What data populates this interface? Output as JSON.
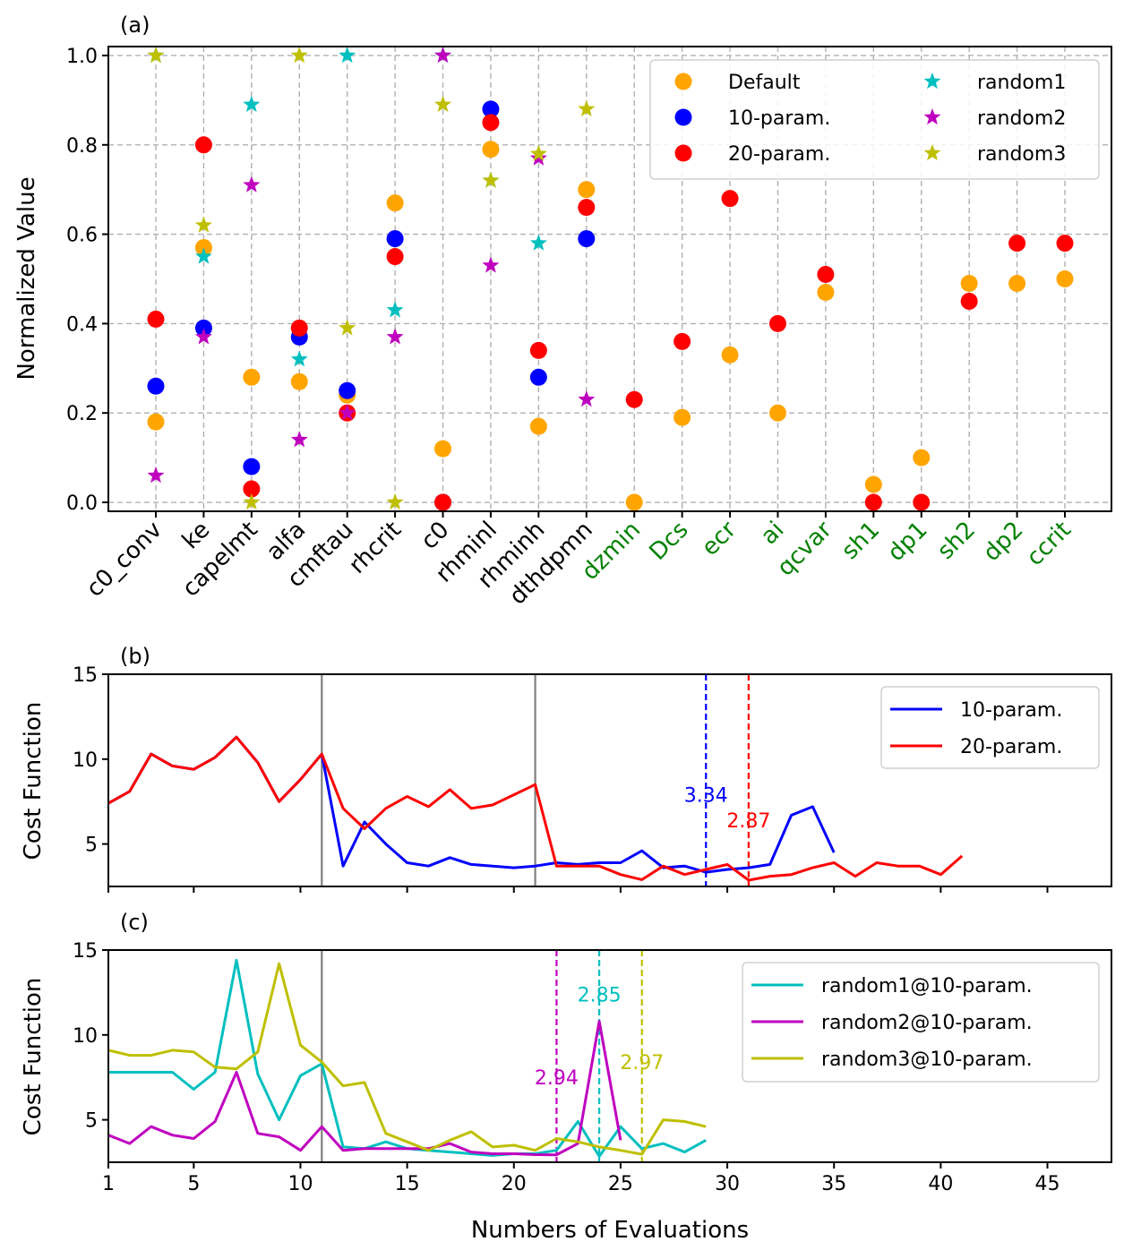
{
  "chart_data": [
    {
      "panel": "(a)",
      "type": "scatter",
      "title": "(a)",
      "xlabel": "",
      "ylabel": "Normalized Value",
      "ylim": [
        -0.02,
        1.02
      ],
      "yticks": [
        "0.0",
        "0.2",
        "0.4",
        "0.6",
        "0.8",
        "1.0"
      ],
      "grid": true,
      "legend_position": "top-right",
      "categories": [
        "c0_conv",
        "ke",
        "capelmt",
        "alfa",
        "cmftau",
        "rhcrit",
        "c0",
        "rhminl",
        "rhminh",
        "dthdpmn",
        "dzmin",
        "Dcs",
        "ecr",
        "ai",
        "qcvar",
        "sh1",
        "dp1",
        "sh2",
        "dp2",
        "ccrit"
      ],
      "category_colors": [
        "#000000",
        "#000000",
        "#000000",
        "#000000",
        "#000000",
        "#000000",
        "#000000",
        "#000000",
        "#000000",
        "#000000",
        "#008000",
        "#008000",
        "#008000",
        "#008000",
        "#008000",
        "#008000",
        "#008000",
        "#008000",
        "#008000",
        "#008000"
      ],
      "series": [
        {
          "name": "Default",
          "marker": "circle",
          "color": "#FFA500",
          "values": [
            0.18,
            0.57,
            0.28,
            0.27,
            0.24,
            0.67,
            0.12,
            0.79,
            0.17,
            0.7,
            0.0,
            0.19,
            0.33,
            0.2,
            0.47,
            0.04,
            0.1,
            0.49,
            0.49,
            0.5
          ]
        },
        {
          "name": "10-param.",
          "marker": "circle",
          "color": "#0000FF",
          "values": [
            0.26,
            0.39,
            0.08,
            0.37,
            0.25,
            0.59,
            0.0,
            0.88,
            0.28,
            0.59,
            null,
            null,
            null,
            null,
            null,
            null,
            null,
            null,
            null,
            null
          ]
        },
        {
          "name": "20-param.",
          "marker": "circle",
          "color": "#FF0000",
          "values": [
            0.41,
            0.8,
            0.03,
            0.39,
            0.2,
            0.55,
            0.0,
            0.85,
            0.34,
            0.66,
            0.23,
            0.36,
            0.68,
            0.4,
            0.51,
            0.0,
            0.0,
            0.45,
            0.58,
            0.58
          ]
        },
        {
          "name": "random1",
          "marker": "star",
          "color": "#00BFBF",
          "values": [
            1.0,
            0.55,
            0.89,
            0.32,
            1.0,
            0.43,
            1.0,
            0.72,
            0.58,
            null,
            null,
            null,
            null,
            null,
            null,
            null,
            null,
            null,
            null,
            null
          ]
        },
        {
          "name": "random2",
          "marker": "star",
          "color": "#BF00BF",
          "values": [
            0.06,
            0.37,
            0.71,
            0.14,
            0.2,
            0.37,
            1.0,
            0.53,
            0.77,
            0.23,
            null,
            null,
            null,
            null,
            null,
            null,
            null,
            null,
            null,
            null
          ]
        },
        {
          "name": "random3",
          "marker": "star",
          "color": "#BFBF00",
          "values": [
            1.0,
            0.62,
            0.0,
            1.0,
            0.39,
            0.0,
            0.89,
            0.72,
            0.78,
            0.88,
            null,
            null,
            null,
            null,
            null,
            null,
            null,
            null,
            null,
            null
          ]
        }
      ]
    },
    {
      "panel": "(b)",
      "type": "line",
      "title": "(b)",
      "xlabel": "",
      "ylabel": "Cost Function",
      "xlim": [
        1,
        48
      ],
      "ylim": [
        2.5,
        15
      ],
      "yticks": [
        "5",
        "10",
        "15"
      ],
      "grid": false,
      "legend_position": "top-right",
      "vertical_lines": [
        {
          "x": 11,
          "color": "#808080",
          "style": "solid"
        },
        {
          "x": 21,
          "color": "#808080",
          "style": "solid"
        },
        {
          "x": 29,
          "color": "#0000FF",
          "style": "dashed"
        },
        {
          "x": 31,
          "color": "#FF0000",
          "style": "dashed"
        }
      ],
      "annotations": [
        {
          "text": "3.34",
          "x": 29,
          "y": 7.9,
          "color": "#0000FF"
        },
        {
          "text": "2.87",
          "x": 31,
          "y": 6.4,
          "color": "#FF0000"
        }
      ],
      "series": [
        {
          "name": "10-param.",
          "color": "#0000FF",
          "x": [
            1,
            2,
            3,
            4,
            5,
            6,
            7,
            8,
            9,
            10,
            11,
            12,
            13,
            14,
            15,
            16,
            17,
            18,
            19,
            20,
            21,
            22,
            23,
            24,
            25,
            26,
            27,
            28,
            29,
            30,
            31,
            32,
            33,
            34,
            35
          ],
          "values": [
            7.4,
            8.1,
            10.3,
            9.6,
            9.4,
            10.1,
            11.3,
            9.8,
            7.5,
            8.8,
            10.3,
            3.7,
            6.3,
            5.0,
            3.9,
            3.7,
            4.2,
            3.8,
            3.7,
            3.6,
            3.7,
            3.9,
            3.8,
            3.9,
            3.9,
            4.6,
            3.6,
            3.7,
            3.34,
            3.5,
            3.6,
            3.8,
            6.7,
            7.2,
            4.5
          ]
        },
        {
          "name": "20-param.",
          "color": "#FF0000",
          "x": [
            1,
            2,
            3,
            4,
            5,
            6,
            7,
            8,
            9,
            10,
            11,
            12,
            13,
            14,
            15,
            16,
            17,
            18,
            19,
            20,
            21,
            22,
            23,
            24,
            25,
            26,
            27,
            28,
            29,
            30,
            31,
            32,
            33,
            34,
            35,
            36,
            37,
            38,
            39,
            40,
            41
          ],
          "values": [
            7.4,
            8.1,
            10.3,
            9.6,
            9.4,
            10.1,
            11.3,
            9.8,
            7.5,
            8.8,
            10.3,
            7.1,
            5.9,
            7.1,
            7.8,
            7.2,
            8.2,
            7.1,
            7.3,
            7.9,
            8.5,
            3.7,
            3.7,
            3.7,
            3.2,
            2.9,
            3.7,
            3.2,
            3.5,
            3.8,
            2.87,
            3.1,
            3.2,
            3.6,
            3.9,
            3.1,
            3.9,
            3.7,
            3.7,
            3.2,
            4.3
          ]
        }
      ]
    },
    {
      "panel": "(c)",
      "type": "line",
      "title": "(c)",
      "xlabel": "Numbers of Evaluations",
      "ylabel": "Cost Function",
      "xlim": [
        1,
        48
      ],
      "ylim": [
        2.5,
        15
      ],
      "xticks": [
        "1",
        "5",
        "10",
        "15",
        "20",
        "25",
        "30",
        "35",
        "40",
        "45"
      ],
      "xtick_values": [
        1,
        5,
        10,
        15,
        20,
        25,
        30,
        35,
        40,
        45
      ],
      "yticks": [
        "5",
        "10",
        "15"
      ],
      "grid": false,
      "legend_position": "top-right",
      "vertical_lines": [
        {
          "x": 11,
          "color": "#808080",
          "style": "solid"
        },
        {
          "x": 22,
          "color": "#BF00BF",
          "style": "dashed"
        },
        {
          "x": 24,
          "color": "#00BFBF",
          "style": "dashed"
        },
        {
          "x": 26,
          "color": "#BFBF00",
          "style": "dashed"
        }
      ],
      "annotations": [
        {
          "text": "2.85",
          "x": 24,
          "y": 12.4,
          "color": "#00BFBF"
        },
        {
          "text": "2.94",
          "x": 22,
          "y": 7.5,
          "color": "#BF00BF"
        },
        {
          "text": "2.97",
          "x": 26,
          "y": 8.4,
          "color": "#BFBF00"
        }
      ],
      "series": [
        {
          "name": "random1@10-param.",
          "color": "#00BFBF",
          "x": [
            1,
            2,
            3,
            4,
            5,
            6,
            7,
            8,
            9,
            10,
            11,
            12,
            13,
            14,
            15,
            16,
            17,
            18,
            19,
            20,
            21,
            22,
            23,
            24,
            25,
            26,
            27,
            28,
            29
          ],
          "values": [
            7.8,
            7.8,
            7.8,
            7.8,
            6.8,
            7.8,
            14.4,
            7.7,
            5.0,
            7.6,
            8.3,
            3.4,
            3.3,
            3.7,
            3.3,
            3.2,
            3.1,
            3.0,
            2.9,
            3.0,
            3.0,
            3.2,
            4.9,
            2.85,
            4.6,
            3.3,
            3.6,
            3.1,
            3.8
          ]
        },
        {
          "name": "random2@10-param.",
          "color": "#BF00BF",
          "x": [
            1,
            2,
            3,
            4,
            5,
            6,
            7,
            8,
            9,
            10,
            11,
            12,
            13,
            14,
            15,
            16,
            17,
            18,
            19,
            20,
            21,
            22,
            23,
            24,
            25
          ],
          "values": [
            4.1,
            3.6,
            4.6,
            4.1,
            3.9,
            4.9,
            7.8,
            4.2,
            4.0,
            3.2,
            4.6,
            3.2,
            3.3,
            3.3,
            3.3,
            3.3,
            3.6,
            3.1,
            3.0,
            3.0,
            2.95,
            2.94,
            3.6,
            10.8,
            3.8
          ]
        },
        {
          "name": "random3@10-param.",
          "color": "#BFBF00",
          "x": [
            1,
            2,
            3,
            4,
            5,
            6,
            7,
            8,
            9,
            10,
            11,
            12,
            13,
            14,
            15,
            16,
            17,
            18,
            19,
            20,
            21,
            22,
            23,
            24,
            25,
            26,
            27,
            28,
            29
          ],
          "values": [
            9.1,
            8.8,
            8.8,
            9.1,
            9.0,
            8.1,
            8.0,
            9.0,
            14.2,
            9.4,
            8.4,
            7.0,
            7.2,
            4.2,
            3.7,
            3.2,
            3.8,
            4.3,
            3.4,
            3.5,
            3.2,
            3.9,
            3.7,
            3.4,
            3.2,
            2.97,
            5.0,
            4.9,
            4.6
          ]
        }
      ]
    }
  ]
}
